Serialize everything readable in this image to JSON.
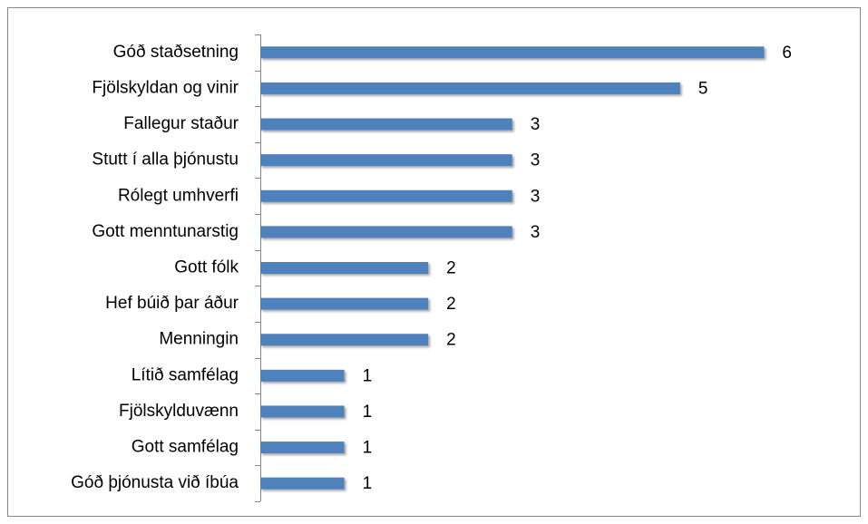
{
  "chart_data": {
    "type": "bar",
    "orientation": "horizontal",
    "categories": [
      "Góð staðsetning",
      "Fjölskyldan og vinir",
      "Fallegur staður",
      "Stutt í alla þjónustu",
      "Rólegt umhverfi",
      "Gott menntunarstig",
      "Gott fólk",
      "Hef búið þar áður",
      "Menningin",
      "Lítið samfélag",
      "Fjölskylduvænn",
      "Gott samfélag",
      "Góð þjónusta við íbúa"
    ],
    "values": [
      6,
      5,
      3,
      3,
      3,
      3,
      2,
      2,
      2,
      1,
      1,
      1,
      1
    ],
    "color": "#4f81bd",
    "xlim": [
      0,
      7
    ]
  }
}
